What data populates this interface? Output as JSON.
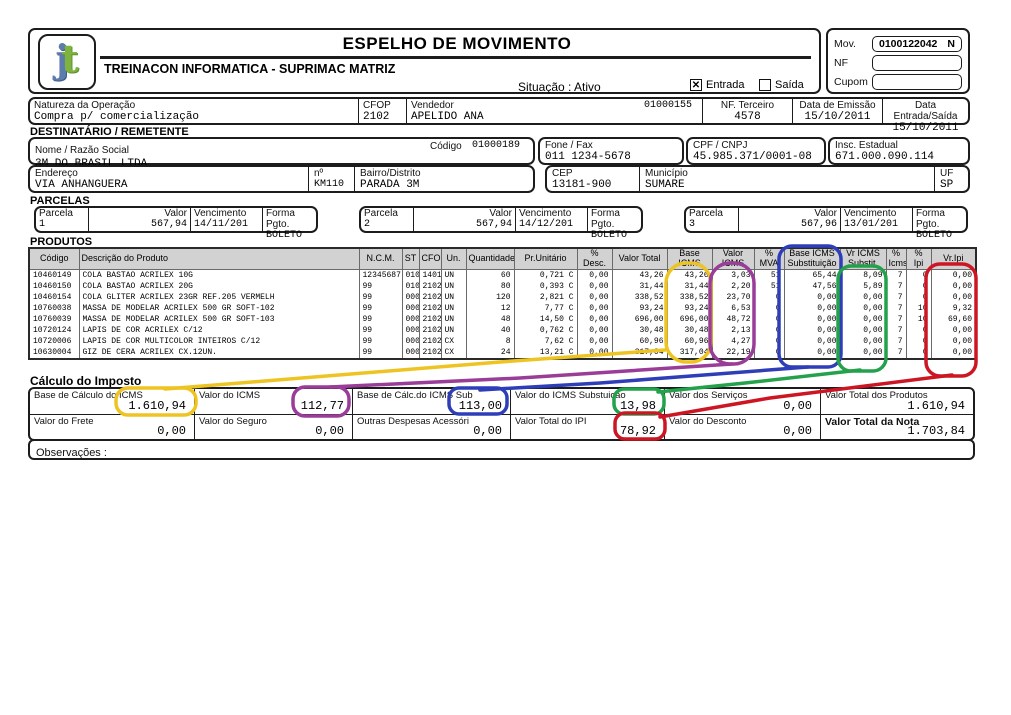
{
  "header": {
    "title": "ESPELHO DE MOVIMENTO",
    "company": "TREINACON INFORMATICA - SUPRIMAC MATRIZ",
    "logo_text": "jt",
    "situacao": "Situação : Ativo",
    "entrada_label": "Entrada",
    "saida_label": "Saída",
    "entrada_mark": "✕"
  },
  "mov_box": {
    "mov_label": "Mov.",
    "mov_value": "0100122042",
    "mov_flag": "N",
    "nf_label": "NF",
    "nf_value": "",
    "cupom_label": "Cupom",
    "cupom_value": ""
  },
  "operation": {
    "natureza_label": "Natureza da Operação",
    "natureza_value": "Compra p/ comercialização",
    "cfop_label": "CFOP",
    "cfop_value": "2102",
    "vendedor_label": "Vendedor",
    "vendedor_code": "01000155",
    "vendedor_value": "APELIDO ANA",
    "nf_terceiro_label": "NF. Terceiro",
    "nf_terceiro_value": "4578",
    "emissao_label": "Data de Emissão",
    "emissao_value": "15/10/2011",
    "entrada_saida_label": "Data Entrada/Saída",
    "entrada_saida_value": "15/10/2011"
  },
  "destinatario": {
    "section_label": "DESTINATÁRIO / REMETENTE",
    "nome_label": "Nome / Razão Social",
    "codigo_label": "Código",
    "codigo_value": "01000189",
    "nome_value": "3M DO BRASIL LTDA",
    "fone_label": "Fone / Fax",
    "fone_value": "011  1234-5678",
    "cnpj_label": "CPF / CNPJ",
    "cnpj_value": "45.985.371/0001-08",
    "ie_label": "Insc. Estadual",
    "ie_value": "671.000.090.114",
    "endereco_label": "Endereço",
    "endereco_value": "VIA ANHANGUERA",
    "numero_label": "nº",
    "numero_value": "KM110",
    "bairro_label": "Bairro/Distrito",
    "bairro_value": "PARADA 3M",
    "cep_label": "CEP",
    "cep_value": "13181-900",
    "municipio_label": "Município",
    "municipio_value": "SUMARE",
    "uf_label": "UF",
    "uf_value": "SP"
  },
  "parcelas": {
    "section_label": "PARCELAS",
    "headers": {
      "parcela": "Parcela",
      "valor": "Valor",
      "vencimento": "Vencimento",
      "forma": "Forma Pgto."
    },
    "items": [
      {
        "parcela": "1",
        "valor": "567,94",
        "vencimento": "14/11/201",
        "forma": "BOLETO"
      },
      {
        "parcela": "2",
        "valor": "567,94",
        "vencimento": "14/12/201",
        "forma": "BOLETO"
      },
      {
        "parcela": "3",
        "valor": "567,96",
        "vencimento": "13/01/201",
        "forma": "BOLETO"
      }
    ]
  },
  "produtos": {
    "section_label": "PRODUTOS",
    "headers": [
      "Código",
      "Descrição do Produto",
      "N.C.M.",
      "ST",
      "CFOP",
      "Un.",
      "Quantidade",
      "Pr.Unitário",
      "%\nDesc.",
      "Valor Total",
      "Base ICMS",
      "Valor ICMS",
      "%\nMVA",
      "Base ICMS\nSubstituição",
      "Vr ICMS\nSubstit.",
      "%\nIcms",
      "%\nIpi",
      "Vr.Ipi"
    ],
    "rows": [
      [
        "10460149",
        "COLA BASTAO ACRILEX 10G",
        "12345687",
        "010",
        "1401",
        "UN",
        "60",
        "0,721 C",
        "0,00",
        "43,26",
        "43,26",
        "3,03",
        "51",
        "65,44",
        "8,09",
        "7",
        "0",
        "0,00"
      ],
      [
        "10460150",
        "COLA BASTAO ACRILEX 20G",
        "99",
        "010",
        "2102",
        "UN",
        "80",
        "0,393 C",
        "0,00",
        "31,44",
        "31,44",
        "2,20",
        "51",
        "47,56",
        "5,89",
        "7",
        "0",
        "0,00"
      ],
      [
        "10460154",
        "COLA GLITER ACRILEX 23GR REF.205 VERMELH",
        "99",
        "000",
        "2102",
        "UN",
        "120",
        "2,821 C",
        "0,00",
        "338,52",
        "338,52",
        "23,70",
        "0",
        "0,00",
        "0,00",
        "7",
        "0",
        "0,00"
      ],
      [
        "10760038",
        "MASSA DE MODELAR ACRILEX 500 GR SOFT-102",
        "99",
        "000",
        "2102",
        "UN",
        "12",
        "7,77 C",
        "0,00",
        "93,24",
        "93,24",
        "6,53",
        "0",
        "0,00",
        "0,00",
        "7",
        "10",
        "9,32"
      ],
      [
        "10760039",
        "MASSA DE MODELAR ACRILEX 500 GR SOFT-103",
        "99",
        "000",
        "2102",
        "UN",
        "48",
        "14,50 C",
        "0,00",
        "696,00",
        "696,00",
        "48,72",
        "0",
        "0,00",
        "0,00",
        "7",
        "10",
        "69,60"
      ],
      [
        "10720124",
        "LAPIS DE COR ACRILEX C/12",
        "99",
        "000",
        "2102",
        "UN",
        "40",
        "0,762 C",
        "0,00",
        "30,48",
        "30,48",
        "2,13",
        "0",
        "0,00",
        "0,00",
        "7",
        "0",
        "0,00"
      ],
      [
        "10720006",
        "LAPIS DE COR MULTICOLOR INTEIROS C/12",
        "99",
        "000",
        "2102",
        "CX",
        "8",
        "7,62 C",
        "0,00",
        "60,96",
        "60,96",
        "4,27",
        "0",
        "0,00",
        "0,00",
        "7",
        "0",
        "0,00"
      ],
      [
        "10630004",
        "GIZ DE CERA ACRILEX CX.12UN.",
        "99",
        "000",
        "2102",
        "CX",
        "24",
        "13,21 C",
        "0,00",
        "317,04",
        "317,04",
        "22,19",
        "0",
        "0,00",
        "0,00",
        "7",
        "0",
        "0,00"
      ]
    ]
  },
  "imposto": {
    "section_label": "Cálculo do Imposto",
    "cells": [
      {
        "label": "Base de Cálculo do ICMS",
        "value": "1.610,94"
      },
      {
        "label": "Valor do ICMS",
        "value": "112,77"
      },
      {
        "label": "Base de Cálc.do ICMS Sub",
        "value": "113,00"
      },
      {
        "label": "Valor do ICMS Substuição",
        "value": "13,98"
      },
      {
        "label": "Valor dos Serviços",
        "value": "0,00"
      },
      {
        "label": "Valor Total dos Produtos",
        "value": "1.610,94"
      },
      {
        "label": "Valor do Frete",
        "value": "0,00"
      },
      {
        "label": "Valor do Seguro",
        "value": "0,00"
      },
      {
        "label": "Outras Despesas Acessóri",
        "value": "0,00"
      },
      {
        "label": "Valor Total do IPI",
        "value": "78,92"
      },
      {
        "label": "Valor do Desconto",
        "value": "0,00"
      },
      {
        "label": "Valor Total da Nota",
        "value": "1.703,84"
      }
    ]
  },
  "observacoes": {
    "label": "Observações :"
  },
  "annotations": {
    "colors": {
      "yellow": "#edc422",
      "purple": "#993d99",
      "blue": "#2e3eb8",
      "green": "#23a14b",
      "red": "#cc1624"
    }
  }
}
